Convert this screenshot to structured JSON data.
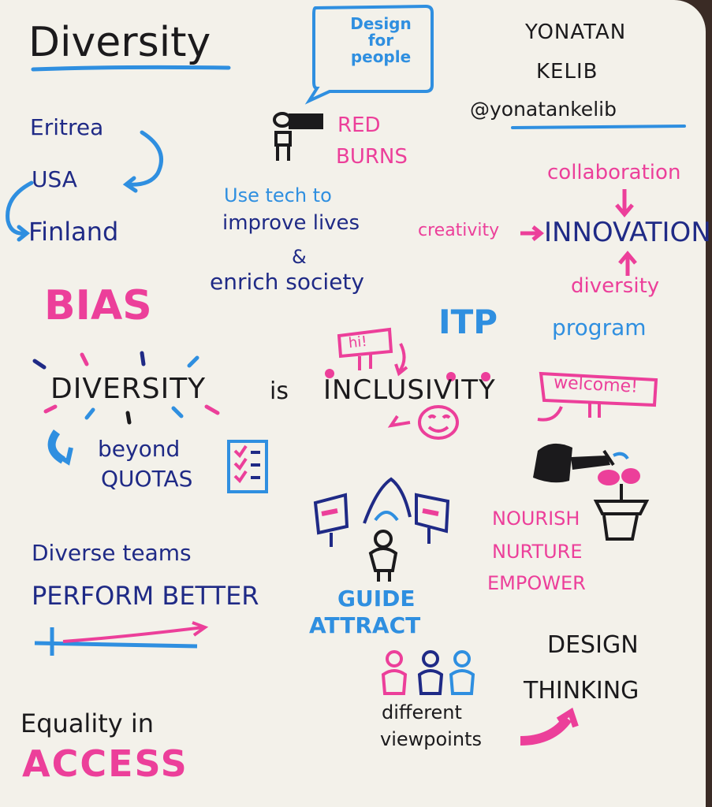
{
  "title": "Diversity",
  "speech_bubble": "Design for people",
  "author": {
    "name_line1": "YONATAN",
    "name_line2": "KELIB",
    "handle": "@yonatankelib"
  },
  "countries": [
    "Eritrea",
    "USA",
    "Finland"
  ],
  "red_burns": {
    "line1": "RED",
    "line2": "BURNS"
  },
  "mission": {
    "line1": "Use tech to",
    "line2": "improve lives",
    "amp": "&",
    "line3": "enrich society"
  },
  "innovation": {
    "top": "collaboration",
    "left": "creativity",
    "center": "INNOVATION",
    "bottom": "diversity"
  },
  "bias": "BIAS",
  "itp": {
    "label": "ITP",
    "program": "program"
  },
  "statement": {
    "diversity": "DIVERSITY",
    "is": "is",
    "inclusivity": "INCLUSIVITY"
  },
  "signs": {
    "hi": "hi!",
    "welcome": "welcome!"
  },
  "quotas": {
    "line1": "beyond",
    "line2": "QUOTAS"
  },
  "nurture": [
    "NOURISH",
    "NURTURE",
    "EMPOWER"
  ],
  "teams": {
    "line1": "Diverse teams",
    "line2": "PERFORM BETTER"
  },
  "guide": {
    "line1": "GUIDE",
    "line2": "ATTRACT"
  },
  "design_thinking": {
    "line1": "DESIGN",
    "line2": "THINKING"
  },
  "viewpoints": {
    "line1": "different",
    "line2": "viewpoints"
  },
  "equality": {
    "line1": "Equality in",
    "line2": "ACCESS"
  },
  "colors": {
    "paper": "#f3f1ea",
    "black": "#1b1a1c",
    "navy": "#1f2a86",
    "blue": "#2f8fe0",
    "pink": "#ec3f9a"
  }
}
